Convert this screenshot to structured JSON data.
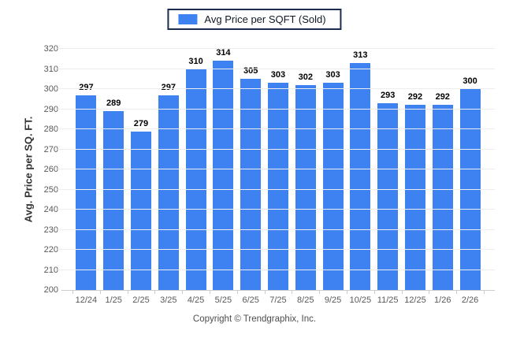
{
  "legend": {
    "label": "Avg Price per SQFT (Sold)"
  },
  "y_axis": {
    "title": "Avg. Price per SQ. FT."
  },
  "footer": {
    "copyright": "Copyright © Trendgraphix, Inc."
  },
  "colors": {
    "bar": "#3e82f1",
    "legend_border": "#1b2c4f",
    "grid": "#ededed",
    "axis_line": "#cccccc",
    "tick_label": "#595959",
    "value_label": "#000000"
  },
  "chart_data": {
    "type": "bar",
    "categories": [
      "12/24",
      "1/25",
      "2/25",
      "3/25",
      "4/25",
      "5/25",
      "6/25",
      "7/25",
      "8/25",
      "9/25",
      "10/25",
      "11/25",
      "12/25",
      "1/26",
      "2/26"
    ],
    "values": [
      297,
      289,
      279,
      297,
      310,
      314,
      305,
      303,
      302,
      303,
      313,
      293,
      292,
      292,
      300
    ],
    "title": "",
    "xlabel": "",
    "ylabel": "Avg. Price per SQ. FT.",
    "ylim": [
      200,
      320
    ],
    "ytick_step": 10,
    "legend_entries": [
      "Avg Price per SQFT (Sold)"
    ],
    "legend_position": "top-center",
    "grid": "horizontal",
    "value_labels": true
  }
}
